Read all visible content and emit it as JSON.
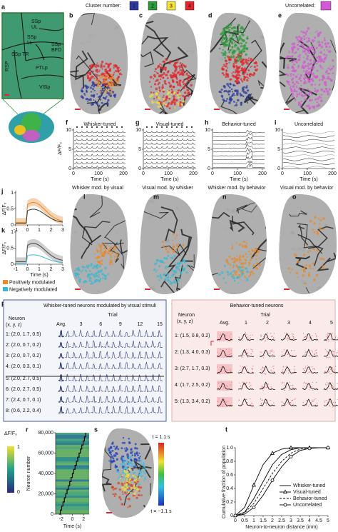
{
  "legend": {
    "cluster_label": "Cluster number:",
    "clusters": [
      "1",
      "2",
      "3",
      "4"
    ],
    "cluster_colors": [
      "#2b3a9a",
      "#2e9a3a",
      "#f2e23a",
      "#e0262a"
    ],
    "uncorrelated_label": "Uncorrelated:",
    "uncorrelated_color": "#d25ad2"
  },
  "panel_a": {
    "letter": "a",
    "regions": {
      "ul": [
        "SSp",
        "UL"
      ],
      "ll": [
        "SSp",
        "LL"
      ],
      "tr": [
        "SSp TR"
      ],
      "bfd": [
        "SSp",
        "BFD"
      ],
      "ptlp": [
        "PTLp"
      ],
      "rsp": [
        "RSP"
      ],
      "visp": [
        "VISp"
      ]
    }
  },
  "image_panels": {
    "letters": [
      "b",
      "c",
      "d",
      "e"
    ]
  },
  "traces": {
    "letters": [
      "f",
      "g",
      "h",
      "i"
    ],
    "titles": [
      "Whisker-tuned",
      "Visual-tuned",
      "Behavior-tuned",
      "Uncorrelated"
    ],
    "ylabel": "ΔF/F₀",
    "yticks": [
      10,
      5,
      0
    ],
    "xticks": [
      0,
      100,
      200
    ],
    "xlabel": "Time (s)"
  },
  "modulation": {
    "letters": [
      "j",
      "k"
    ],
    "ylabel": "ΔF/F₀",
    "yticks": [
      1,
      0.5,
      0
    ],
    "xticks": [
      -1,
      0,
      1,
      2,
      3
    ],
    "xlabel": "Time (s)",
    "legend": [
      "Positively modulated",
      "Negatively modulated"
    ],
    "legend_colors": [
      "#e8892a",
      "#3ab8d0"
    ]
  },
  "maps": {
    "letters": [
      "l",
      "m",
      "n",
      "o"
    ],
    "titles": [
      "Whisker mod. by visual",
      "Visual mod. by whisker",
      "Whisker mod. by behavior",
      "Visual mod. by behavior"
    ]
  },
  "panel_p": {
    "letter": "p",
    "title": "Whisker-tuned neurons modulated by visual stimuli",
    "neuron": "Neuron",
    "coords": "(x, y, z)",
    "trial": "Trial",
    "avg": "Avg.",
    "trials": [
      3,
      6,
      9,
      12,
      15
    ],
    "neurons": [
      "1: (2.0, 1.7, 0.5)",
      "2: (2.0, 0.7, 0.2)",
      "3: (2.0, 0.7, 0.2)",
      "4: (2.0, 0.3, 0.1)",
      "5: (2.0, 2.7, 0.5)",
      "6: (2.0, 2.7, 0.5)",
      "7: (2.4, 0.7, 0.1)",
      "8: (0.6, 2.2, 0.4)"
    ]
  },
  "panel_q": {
    "letter": "q",
    "title": "Behavior-tuned neurons",
    "neuron": "Neuron",
    "coords": "(x, y, z)",
    "trial": "Trial",
    "avg": "Avg.",
    "trials": [
      1,
      2,
      3,
      4,
      5
    ],
    "neurons": [
      "1: (1.5, 0.8, 0.2)",
      "2: (1.3, 4.0, 0.3)",
      "3: (2.7, 1.7, 0.3)",
      "4: (1.7, 2.5, 0.2)",
      "5: (1.3, 3.4, 0.2)"
    ]
  },
  "panel_r": {
    "letter": "r",
    "colorbar_label": "ΔF/F₀",
    "colorbar_ticks": [
      1,
      0
    ],
    "ylabel": "Neuron number",
    "yticks": [
      {
        "value": 80000,
        "label": "80,000"
      },
      {
        "value": 60000,
        "label": "60,000"
      },
      {
        "value": 40000,
        "label": "40,000"
      },
      {
        "value": 20000,
        "label": "20,000"
      },
      0
    ],
    "xticks": [
      -2,
      0,
      2
    ],
    "xlabel": "Time (s)"
  },
  "panel_s": {
    "letter": "s",
    "top": "t = 1.1 s",
    "bottom": "t = −1.1 s"
  },
  "chart_data": {
    "letter": "t",
    "type": "line",
    "xlabel": "Neuron-to-neuron distance (mm)",
    "ylabel": "Cumulative fraction of population",
    "x": [
      0,
      0.5,
      1,
      1.5,
      2,
      2.5,
      3,
      3.5,
      4,
      4.5,
      5
    ],
    "xlim": [
      0,
      5
    ],
    "ylim": [
      0,
      1
    ],
    "xticks": [
      0,
      0.5,
      1,
      1.5,
      2,
      2.5,
      3,
      3.5,
      4,
      4.5,
      5
    ],
    "yticks": [
      0,
      0.2,
      0.4,
      0.6,
      0.8,
      {
        "value": 1,
        "label": "1.0"
      }
    ],
    "series": [
      {
        "name": "Whisker-tuned",
        "color": "#000000",
        "dash": "solid",
        "marker": "none",
        "values": [
          0,
          0.05,
          0.25,
          0.5,
          0.75,
          0.9,
          0.97,
          1,
          1,
          1,
          1
        ]
      },
      {
        "name": "Visual-tuned",
        "color": "#000000",
        "dash": "solid",
        "marker": "triangle",
        "values": [
          0,
          0.12,
          0.45,
          0.75,
          0.92,
          0.98,
          1,
          1,
          1,
          1,
          1
        ]
      },
      {
        "name": "Behavior-tuned",
        "color": "#000000",
        "dash": "dashed",
        "marker": "none",
        "values": [
          0,
          0.04,
          0.18,
          0.4,
          0.62,
          0.8,
          0.92,
          0.98,
          1,
          1,
          1
        ]
      },
      {
        "name": "Uncorrelated",
        "color": "#000000",
        "dash": "solid",
        "marker": "circle",
        "values": [
          0,
          0.02,
          0.12,
          0.3,
          0.52,
          0.72,
          0.87,
          0.96,
          0.99,
          1,
          1
        ]
      }
    ]
  }
}
